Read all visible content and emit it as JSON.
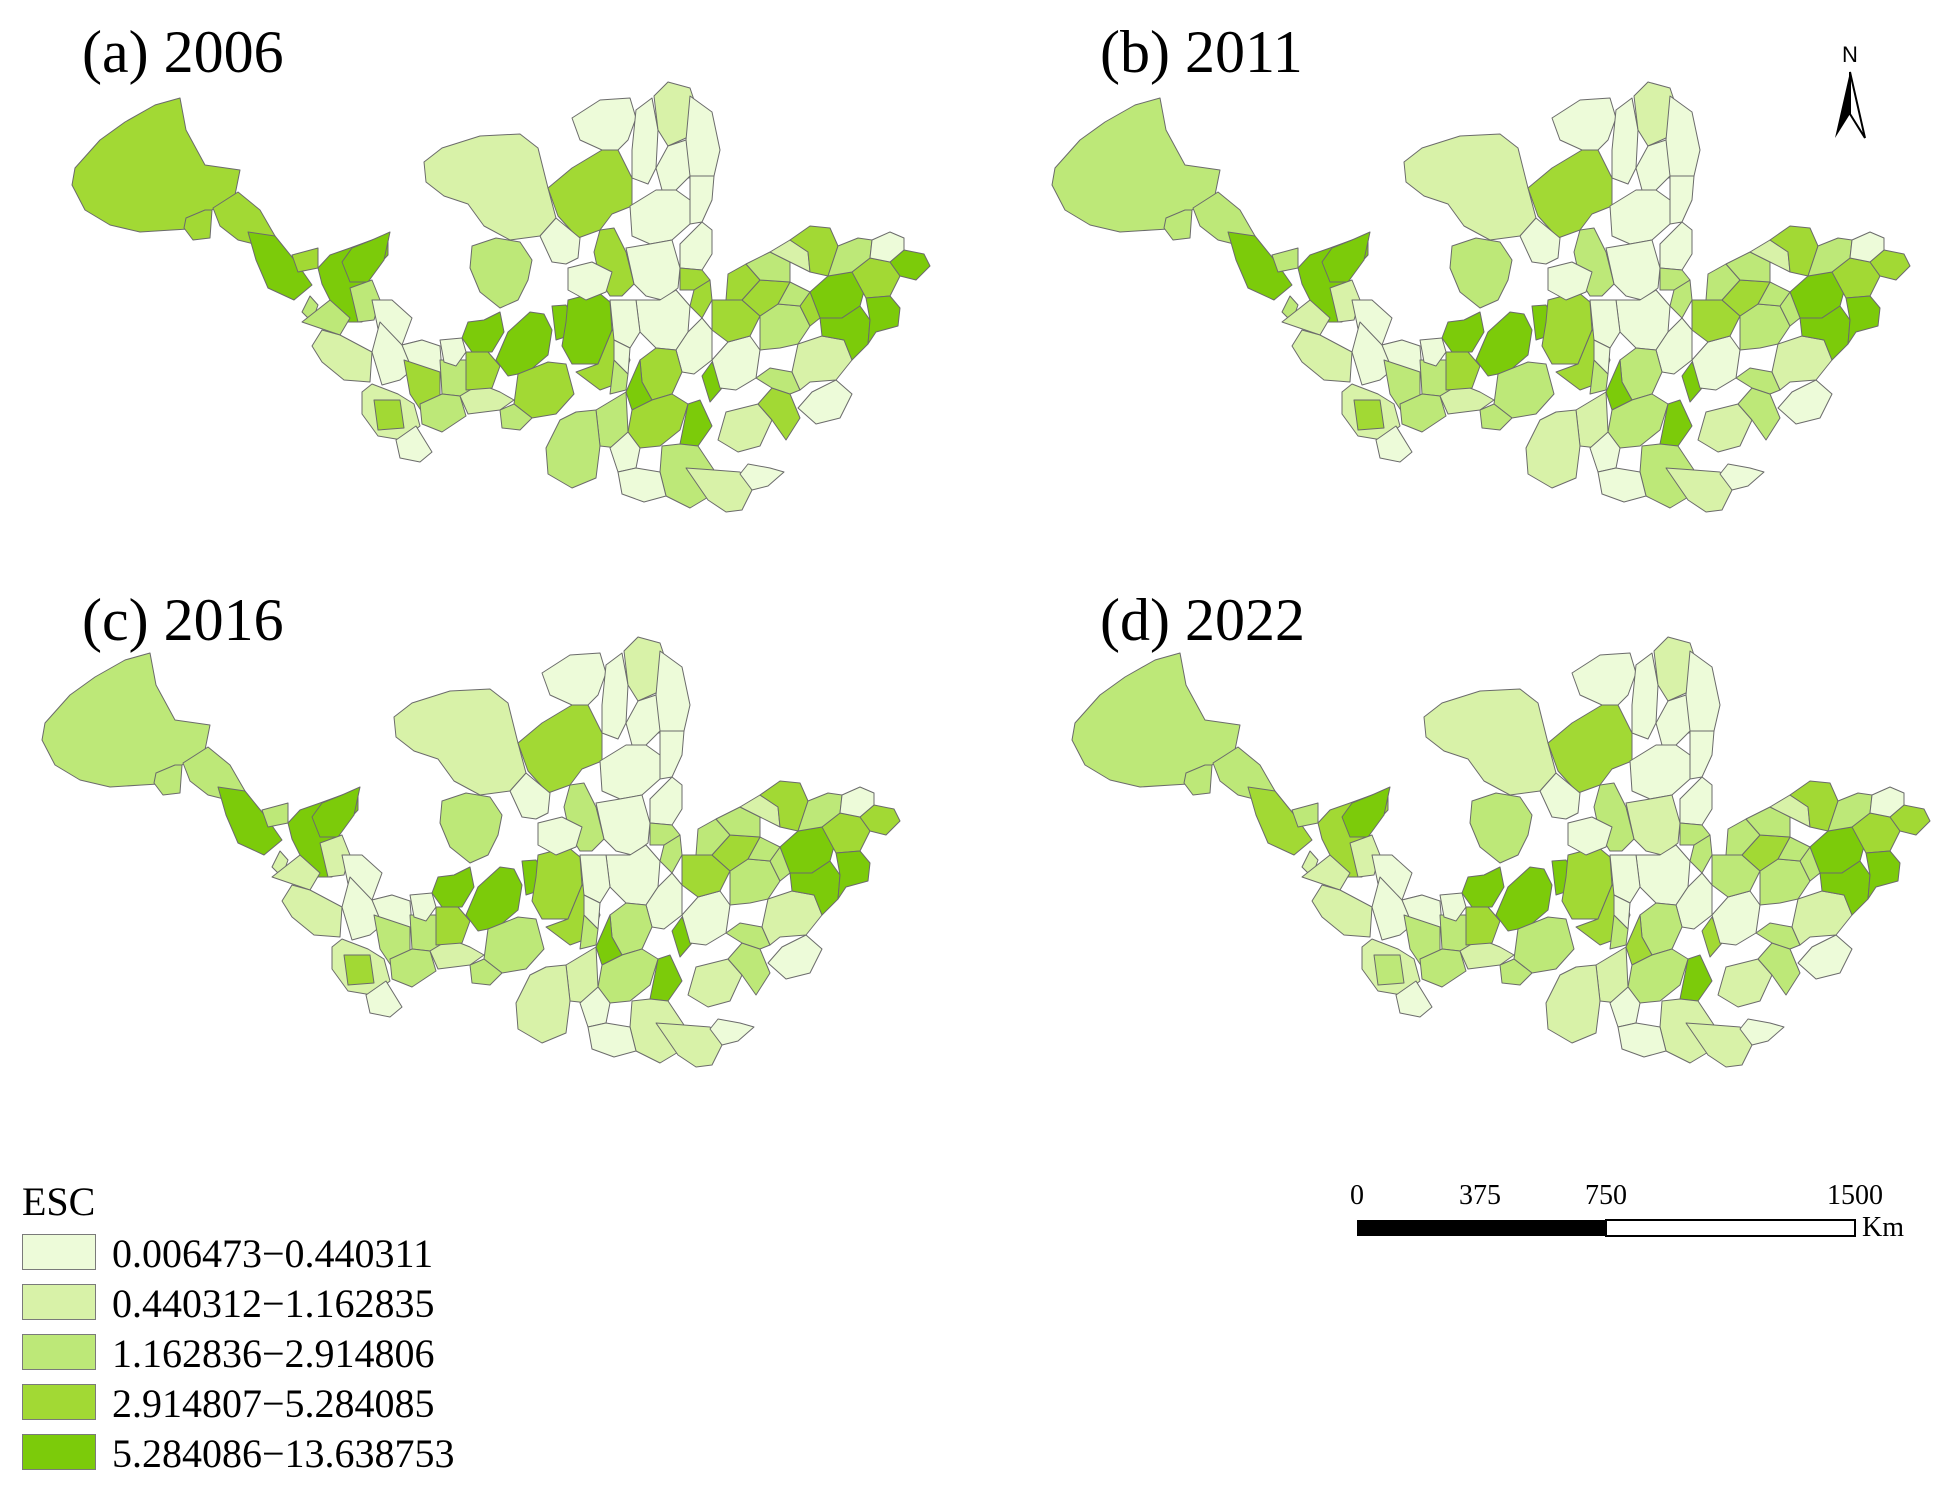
{
  "panels": [
    {
      "label": "(a) 2006",
      "classes": [
        4,
        4,
        4,
        5,
        5,
        4,
        5,
        3,
        3,
        3,
        2,
        1,
        1,
        1,
        2,
        1,
        4,
        4,
        3,
        3,
        2,
        5,
        5,
        4,
        5,
        5,
        4,
        3,
        4,
        4,
        3,
        2,
        4,
        3,
        1,
        1,
        1,
        1,
        2,
        1,
        1,
        1,
        1,
        1,
        1,
        1,
        1,
        1
      ]
    },
    {
      "label": "(b) 2011",
      "classes": [
        3,
        3,
        3,
        5,
        5,
        3,
        5,
        3,
        2,
        2,
        2,
        1,
        1,
        1,
        2,
        1,
        4,
        3,
        3,
        3,
        2,
        5,
        5,
        4,
        5,
        4,
        3,
        3,
        4,
        3,
        3,
        2,
        4,
        3,
        1,
        1,
        1,
        1,
        2,
        1,
        1,
        1,
        1,
        1,
        1,
        1,
        1,
        1
      ]
    },
    {
      "label": "(c) 2016",
      "classes": [
        3,
        3,
        3,
        5,
        5,
        3,
        5,
        2,
        2,
        2,
        2,
        1,
        1,
        1,
        2,
        1,
        4,
        3,
        3,
        3,
        2,
        5,
        5,
        4,
        5,
        4,
        3,
        3,
        4,
        3,
        3,
        2,
        4,
        3,
        1,
        1,
        1,
        1,
        2,
        1,
        1,
        1,
        1,
        1,
        1,
        1,
        1,
        1
      ]
    },
    {
      "label": "(d) 2022",
      "classes": [
        3,
        3,
        3,
        4,
        4,
        3,
        5,
        2,
        2,
        2,
        2,
        1,
        1,
        1,
        2,
        1,
        3,
        3,
        3,
        3,
        2,
        5,
        5,
        4,
        5,
        4,
        3,
        3,
        4,
        3,
        3,
        2,
        4,
        3,
        1,
        1,
        1,
        1,
        2,
        1,
        1,
        1,
        2,
        1,
        1,
        1,
        1,
        1
      ]
    }
  ],
  "legend": {
    "title": "ESC",
    "items": [
      {
        "label": "0.006473−0.440311",
        "color": "#edfbd9"
      },
      {
        "label": "0.440312−1.162835",
        "color": "#d8f2a8"
      },
      {
        "label": "1.162836−2.914806",
        "color": "#bde878"
      },
      {
        "label": "2.914807−5.284085",
        "color": "#a2d934"
      },
      {
        "label": "5.284086−13.638753",
        "color": "#7ccb0a"
      }
    ]
  },
  "scale_bar": {
    "ticks": [
      "0",
      "375",
      "750",
      "1500"
    ],
    "unit": "Km"
  },
  "north_arrow": {
    "label": "N"
  }
}
